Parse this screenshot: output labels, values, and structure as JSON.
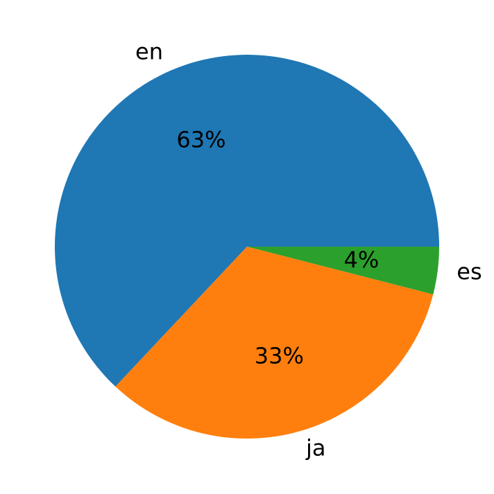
{
  "chart_data": {
    "type": "pie",
    "categories": [
      "en",
      "ja",
      "es"
    ],
    "values": [
      63,
      33,
      4
    ],
    "value_labels": [
      "63%",
      "33%",
      "4%"
    ],
    "colors": [
      "#1f77b4",
      "#ff7f0e",
      "#2ca02c"
    ]
  }
}
